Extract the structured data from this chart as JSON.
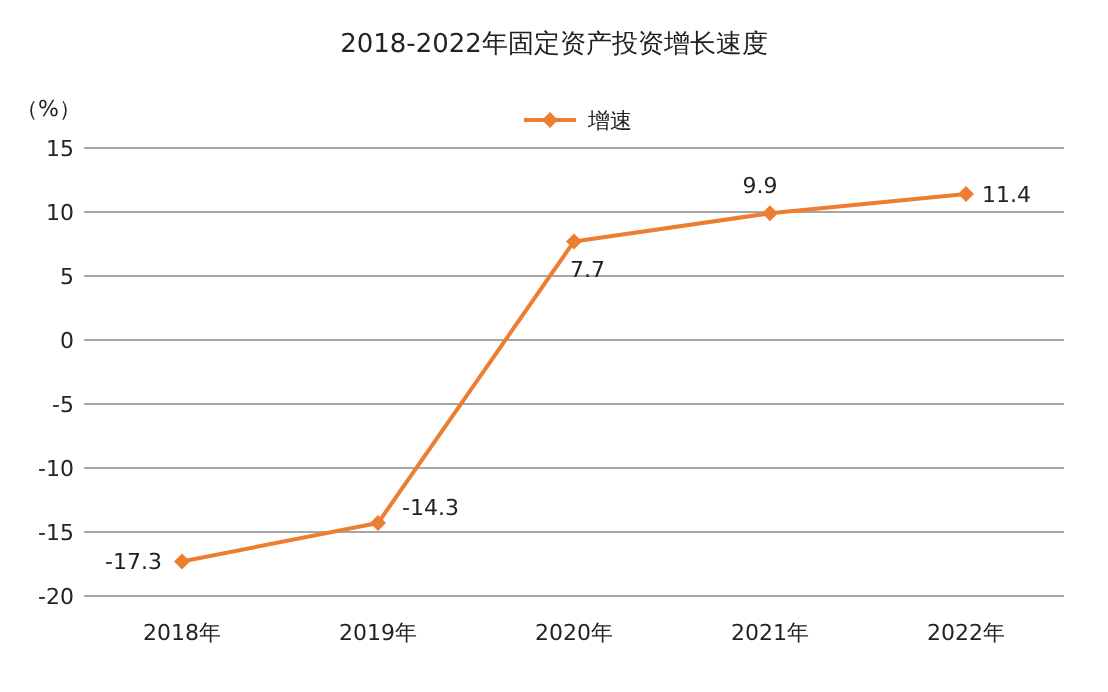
{
  "chart_data": {
    "type": "line",
    "title": "2018-2022年固定资产投资增长速度",
    "ylabel": "（%）",
    "categories": [
      "2018年",
      "2019年",
      "2020年",
      "2021年",
      "2022年"
    ],
    "series": [
      {
        "name": "增速",
        "color": "#ed7d31",
        "values": [
          -17.3,
          -14.3,
          7.7,
          9.9,
          11.4
        ]
      }
    ],
    "ylim": [
      -20,
      15
    ],
    "yticks": [
      -20,
      -15,
      -10,
      -5,
      0,
      5,
      10,
      15
    ],
    "grid": "y",
    "legend": "top",
    "marker": "diamond",
    "line_style": "solid",
    "data_labels": true
  }
}
